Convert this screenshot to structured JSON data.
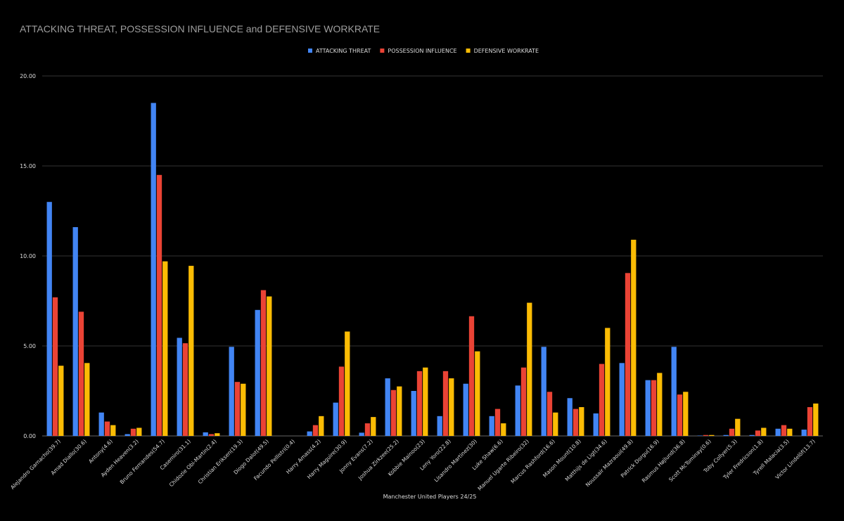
{
  "chart_data": {
    "type": "bar",
    "title": "ATTACKING THREAT, POSSESSION INFLUENCE and DEFENSIVE WORKRATE",
    "xlabel": "Manchester United Players 24/25",
    "ylabel": "",
    "ylim": [
      0,
      20
    ],
    "yticks": [
      "0.00",
      "5.00",
      "10.00",
      "15.00",
      "20.00"
    ],
    "legend_position": "top-center",
    "categories": [
      "Alejandro Garnacho(39.7)",
      "Amad Diallo(30.6)",
      "Antony(4.6)",
      "Ayden Heaven(3.2)",
      "Bruno Fernandes(54.7)",
      "Casemiro(31.1)",
      "Chidozie Obi-Martin(2.4)",
      "Christian Eriksen(19.3)",
      "Diogo Dalot(49.5)",
      "Facundo Pellistri(0.4)",
      "Harry Amass(4.2)",
      "Harry Maguire(30.9)",
      "Jonny Evans(7.2)",
      "Joshua Zirkzee(25.2)",
      "Kobbie Mainoo(23)",
      "Leny Yoro(22.8)",
      "Lisandro Martinez(30)",
      "Luke Shaw(6.6)",
      "Manuel Ugarte Ribeiro(32)",
      "Marcus Rashford(16.6)",
      "Mason Mount(10.8)",
      "Matthijs de Ligt(34.6)",
      "Noussair Mazraoui(49.8)",
      "Patrick Dorgu(16.9)",
      "Rasmus Højlund(36.8)",
      "Scott McTominay(0.6)",
      "Toby Collyer(5.3)",
      "Tyler Fredricson(1.8)",
      "Tyrell Malacia(3.5)",
      "Victor Lindelöf(13.7)"
    ],
    "series": [
      {
        "name": "ATTACKING THREAT",
        "color": "#4285f4",
        "values": [
          13.0,
          11.6,
          1.3,
          0.1,
          18.5,
          5.45,
          0.2,
          4.95,
          7.0,
          0.0,
          0.25,
          1.85,
          0.18,
          3.2,
          2.5,
          1.1,
          2.9,
          1.1,
          2.8,
          4.95,
          2.1,
          1.25,
          4.05,
          3.1,
          4.95,
          0.02,
          0.05,
          0.05,
          0.4,
          0.35
        ]
      },
      {
        "name": "POSSESSION INFLUENCE",
        "color": "#ea4335",
        "values": [
          7.7,
          6.9,
          0.8,
          0.4,
          14.5,
          5.15,
          0.1,
          3.0,
          8.1,
          0.0,
          0.6,
          3.85,
          0.7,
          2.55,
          3.6,
          3.6,
          6.65,
          1.5,
          3.8,
          2.45,
          1.5,
          4.0,
          9.05,
          3.1,
          2.3,
          0.05,
          0.4,
          0.3,
          0.6,
          1.6
        ]
      },
      {
        "name": "DEFENSIVE WORKRATE",
        "color": "#fbbc04",
        "values": [
          3.9,
          4.05,
          0.6,
          0.45,
          9.7,
          9.45,
          0.15,
          2.9,
          7.75,
          0.0,
          1.1,
          5.8,
          1.05,
          2.75,
          3.8,
          3.2,
          4.7,
          0.7,
          7.4,
          1.3,
          1.6,
          6.0,
          10.9,
          3.5,
          2.45,
          0.05,
          0.95,
          0.45,
          0.4,
          1.8
        ]
      }
    ]
  }
}
